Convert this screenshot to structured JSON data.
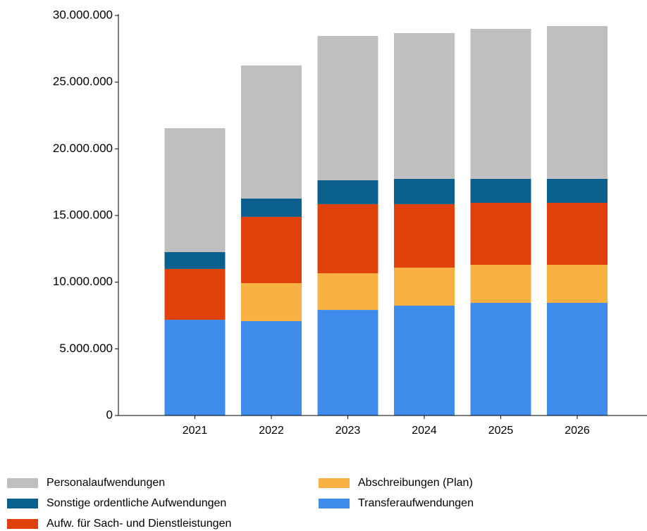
{
  "chart_data": {
    "type": "stacked_bar",
    "categories": [
      "2021",
      "2022",
      "2023",
      "2024",
      "2025",
      "2026"
    ],
    "series": [
      {
        "name": "Personalaufwendungen",
        "color": "#bfbfbf",
        "values": [
          9290000,
          9980000,
          10830000,
          10930000,
          11250000,
          11460000
        ]
      },
      {
        "name": "Sonstige ordentliche Aufwendungen",
        "color": "#0b5f8c",
        "values": [
          1270000,
          1370000,
          1790000,
          1900000,
          1800000,
          1800000
        ]
      },
      {
        "name": "Aufw. für Sach- und Dienstleistungen",
        "color": "#e0400a",
        "values": [
          3810000,
          4970000,
          5180000,
          4760000,
          4650000,
          4650000
        ]
      },
      {
        "name": "Abschreibungen (Plan)",
        "color": "#f9b242",
        "values": [
          0,
          2850000,
          2750000,
          2850000,
          2850000,
          2850000
        ]
      },
      {
        "name": "Transferaufwendungen",
        "color": "#3f8cec",
        "values": [
          7180000,
          7080000,
          7920000,
          8240000,
          8450000,
          8450000
        ]
      }
    ],
    "ylim": [
      0,
      30000000
    ],
    "yticks": [
      0,
      {
        "value": 5000000,
        "label": "5.000.000"
      },
      {
        "value": 10000000,
        "label": "10.000.000"
      },
      {
        "value": 15000000,
        "label": "15.000.000"
      },
      {
        "value": 20000000,
        "label": "20.000.000"
      },
      {
        "value": 25000000,
        "label": "25.000.000"
      },
      {
        "value": 30000000,
        "label": "30.000.000"
      }
    ],
    "grid": false
  }
}
